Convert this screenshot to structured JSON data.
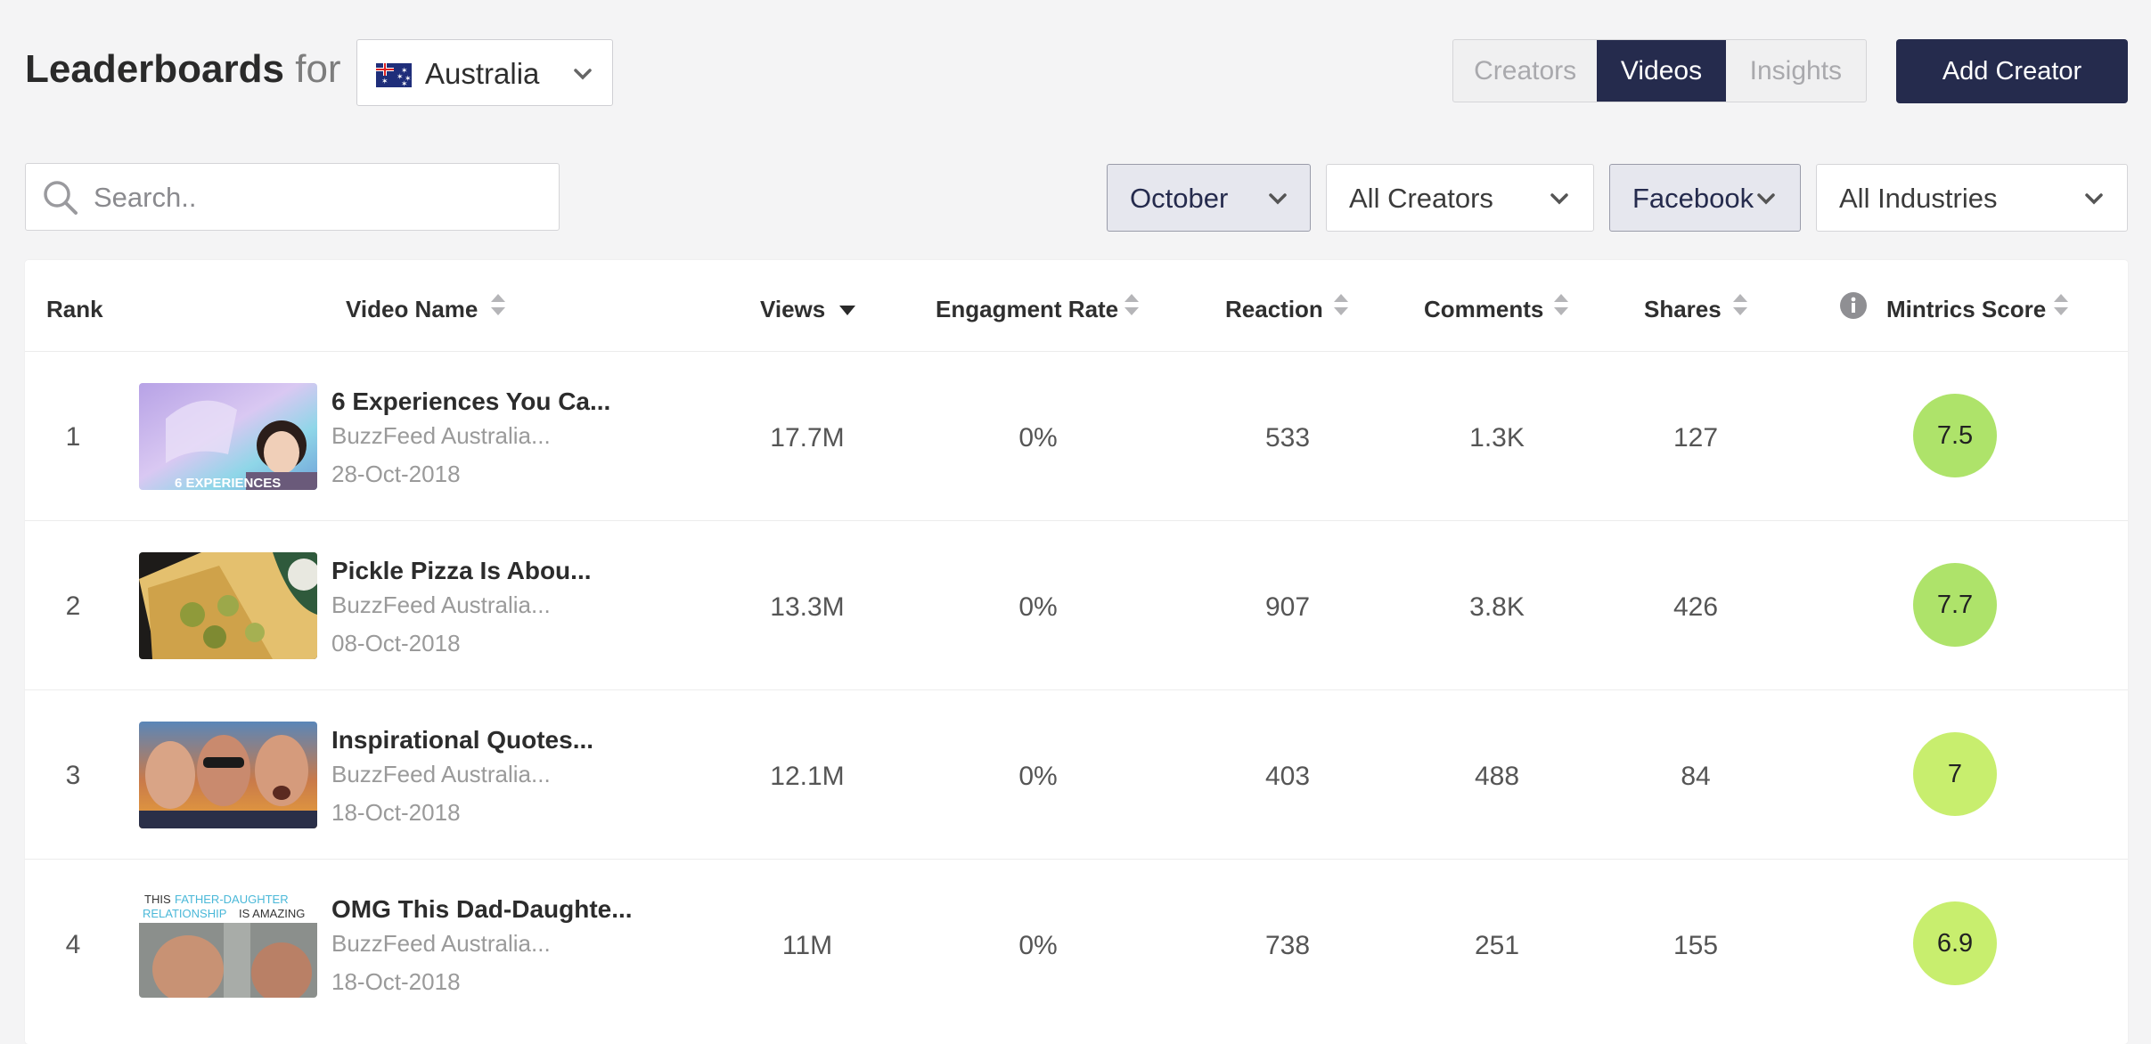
{
  "header": {
    "title_bold": "Leaderboards",
    "title_for": "for",
    "country": {
      "label": "Australia",
      "flag_icon": "australia-flag-icon"
    },
    "tabs": [
      {
        "label": "Creators",
        "active": false
      },
      {
        "label": "Videos",
        "active": true
      },
      {
        "label": "Insights",
        "active": false
      }
    ],
    "add_creator_label": "Add Creator"
  },
  "search": {
    "placeholder": "Search..",
    "value": ""
  },
  "filters": {
    "month": "October",
    "creators": "All Creators",
    "platform": "Facebook",
    "industries": "All Industries"
  },
  "table": {
    "columns": {
      "rank": "Rank",
      "video_name": "Video Name",
      "views": "Views",
      "engagement_rate": "Engagment Rate",
      "reaction": "Reaction",
      "comments": "Comments",
      "shares": "Shares",
      "score": "Mintrics Score"
    },
    "rows": [
      {
        "rank": "1",
        "title": "6 Experiences You Ca...",
        "creator": "BuzzFeed Australia...",
        "date": "28-Oct-2018",
        "views": "17.7M",
        "engagement": "0%",
        "reaction": "533",
        "comments": "1.3K",
        "shares": "127",
        "score": "7.5",
        "thumb_caption": "6 EXPERIENCES"
      },
      {
        "rank": "2",
        "title": "Pickle Pizza Is Abou...",
        "creator": "BuzzFeed Australia...",
        "date": "08-Oct-2018",
        "views": "13.3M",
        "engagement": "0%",
        "reaction": "907",
        "comments": "3.8K",
        "shares": "426",
        "score": "7.7",
        "thumb_caption": ""
      },
      {
        "rank": "3",
        "title": "Inspirational Quotes...",
        "creator": "BuzzFeed Australia...",
        "date": "18-Oct-2018",
        "views": "12.1M",
        "engagement": "0%",
        "reaction": "403",
        "comments": "488",
        "shares": "84",
        "score": "7",
        "thumb_caption": ""
      },
      {
        "rank": "4",
        "title": "OMG This Dad-Daughte...",
        "creator": "BuzzFeed Australia...",
        "date": "18-Oct-2018",
        "views": "11M",
        "engagement": "0%",
        "reaction": "738",
        "comments": "251",
        "shares": "155",
        "score": "6.9",
        "thumb_caption_a": "THIS",
        "thumb_caption_b": "FATHER-DAUGHTER",
        "thumb_caption_c": "RELATIONSHIP",
        "thumb_caption_d": "IS AMAZING"
      }
    ]
  },
  "colors": {
    "navy": "#252b4d",
    "score_green_high": "#aee36a",
    "score_green_mid": "#c8ee6e"
  }
}
